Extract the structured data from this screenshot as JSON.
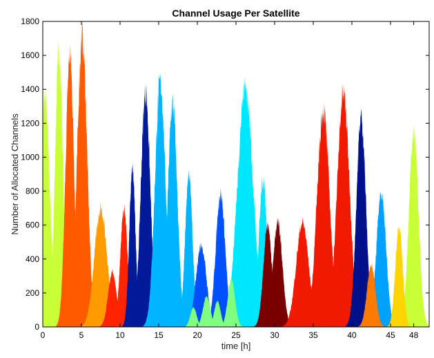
{
  "chart_data": {
    "type": "area",
    "title": "Channel Usage Per Satellite",
    "xlabel": "time [h]",
    "ylabel": "Number of Allocated Channels",
    "xlim": [
      0,
      50
    ],
    "ylim": [
      0,
      1800
    ],
    "xticks": [
      0,
      5,
      10,
      15,
      20,
      25,
      30,
      35,
      40,
      45,
      48
    ],
    "yticks": [
      0,
      200,
      400,
      600,
      800,
      1000,
      1200,
      1400,
      1600,
      1800
    ],
    "grid": false,
    "series": [
      {
        "color": "#c8ff37",
        "peaks": [
          {
            "c": 0.3,
            "h": 1410,
            "w": 0.9
          },
          {
            "c": 2.1,
            "h": 1700,
            "w": 0.75
          },
          {
            "c": 48.0,
            "h": 1200,
            "w": 0.9
          }
        ]
      },
      {
        "color": "#ff5a00",
        "peaks": [
          {
            "c": 3.5,
            "h": 1670,
            "w": 0.8
          },
          {
            "c": 5.1,
            "h": 1780,
            "w": 0.95
          }
        ]
      },
      {
        "color": "#ff9a00",
        "peaks": [
          {
            "c": 7.5,
            "h": 730,
            "w": 1.2
          }
        ]
      },
      {
        "color": "#ff2400",
        "peaks": [
          {
            "c": 9.0,
            "h": 340,
            "w": 0.8
          },
          {
            "c": 10.5,
            "h": 720,
            "w": 0.7
          }
        ]
      },
      {
        "color": "#001a9a",
        "peaks": [
          {
            "c": 11.6,
            "h": 960,
            "w": 0.6
          },
          {
            "c": 13.3,
            "h": 1440,
            "w": 0.9
          }
        ]
      },
      {
        "color": "#00b4ff",
        "peaks": [
          {
            "c": 15.2,
            "h": 1500,
            "w": 1.0
          },
          {
            "c": 16.8,
            "h": 1370,
            "w": 0.9
          },
          {
            "c": 18.9,
            "h": 940,
            "w": 0.7
          }
        ]
      },
      {
        "color": "#0050ff",
        "peaks": [
          {
            "c": 20.5,
            "h": 500,
            "w": 1.0
          },
          {
            "c": 23.0,
            "h": 820,
            "w": 0.9
          }
        ]
      },
      {
        "color": "#00e6ff",
        "peaks": [
          {
            "c": 26.2,
            "h": 1470,
            "w": 1.5
          },
          {
            "c": 28.5,
            "h": 890,
            "w": 0.8
          }
        ]
      },
      {
        "color": "#7a0000",
        "peaks": [
          {
            "c": 29.1,
            "h": 630,
            "w": 0.8
          },
          {
            "c": 30.4,
            "h": 640,
            "w": 0.9
          }
        ]
      },
      {
        "color": "#ef1a00",
        "peaks": [
          {
            "c": 33.6,
            "h": 640,
            "w": 1.2
          },
          {
            "c": 36.3,
            "h": 1330,
            "w": 1.2
          },
          {
            "c": 38.9,
            "h": 1430,
            "w": 1.2
          }
        ]
      },
      {
        "color": "#000f8a",
        "peaks": [
          {
            "c": 41.2,
            "h": 1290,
            "w": 0.9
          }
        ]
      },
      {
        "color": "#00a0ff",
        "peaks": [
          {
            "c": 43.8,
            "h": 830,
            "w": 0.9
          }
        ]
      },
      {
        "color": "#ffd400",
        "peaks": [
          {
            "c": 46.1,
            "h": 610,
            "w": 0.7
          }
        ]
      },
      {
        "color": "#ff7a00",
        "peaks": [
          {
            "c": 42.5,
            "h": 380,
            "w": 0.8
          }
        ]
      },
      {
        "color": "#80ff80",
        "peaks": [
          {
            "c": 19.5,
            "h": 120,
            "w": 0.6
          },
          {
            "c": 21.2,
            "h": 190,
            "w": 0.7
          },
          {
            "c": 22.6,
            "h": 160,
            "w": 0.6
          },
          {
            "c": 24.4,
            "h": 290,
            "w": 0.7
          }
        ]
      }
    ]
  }
}
